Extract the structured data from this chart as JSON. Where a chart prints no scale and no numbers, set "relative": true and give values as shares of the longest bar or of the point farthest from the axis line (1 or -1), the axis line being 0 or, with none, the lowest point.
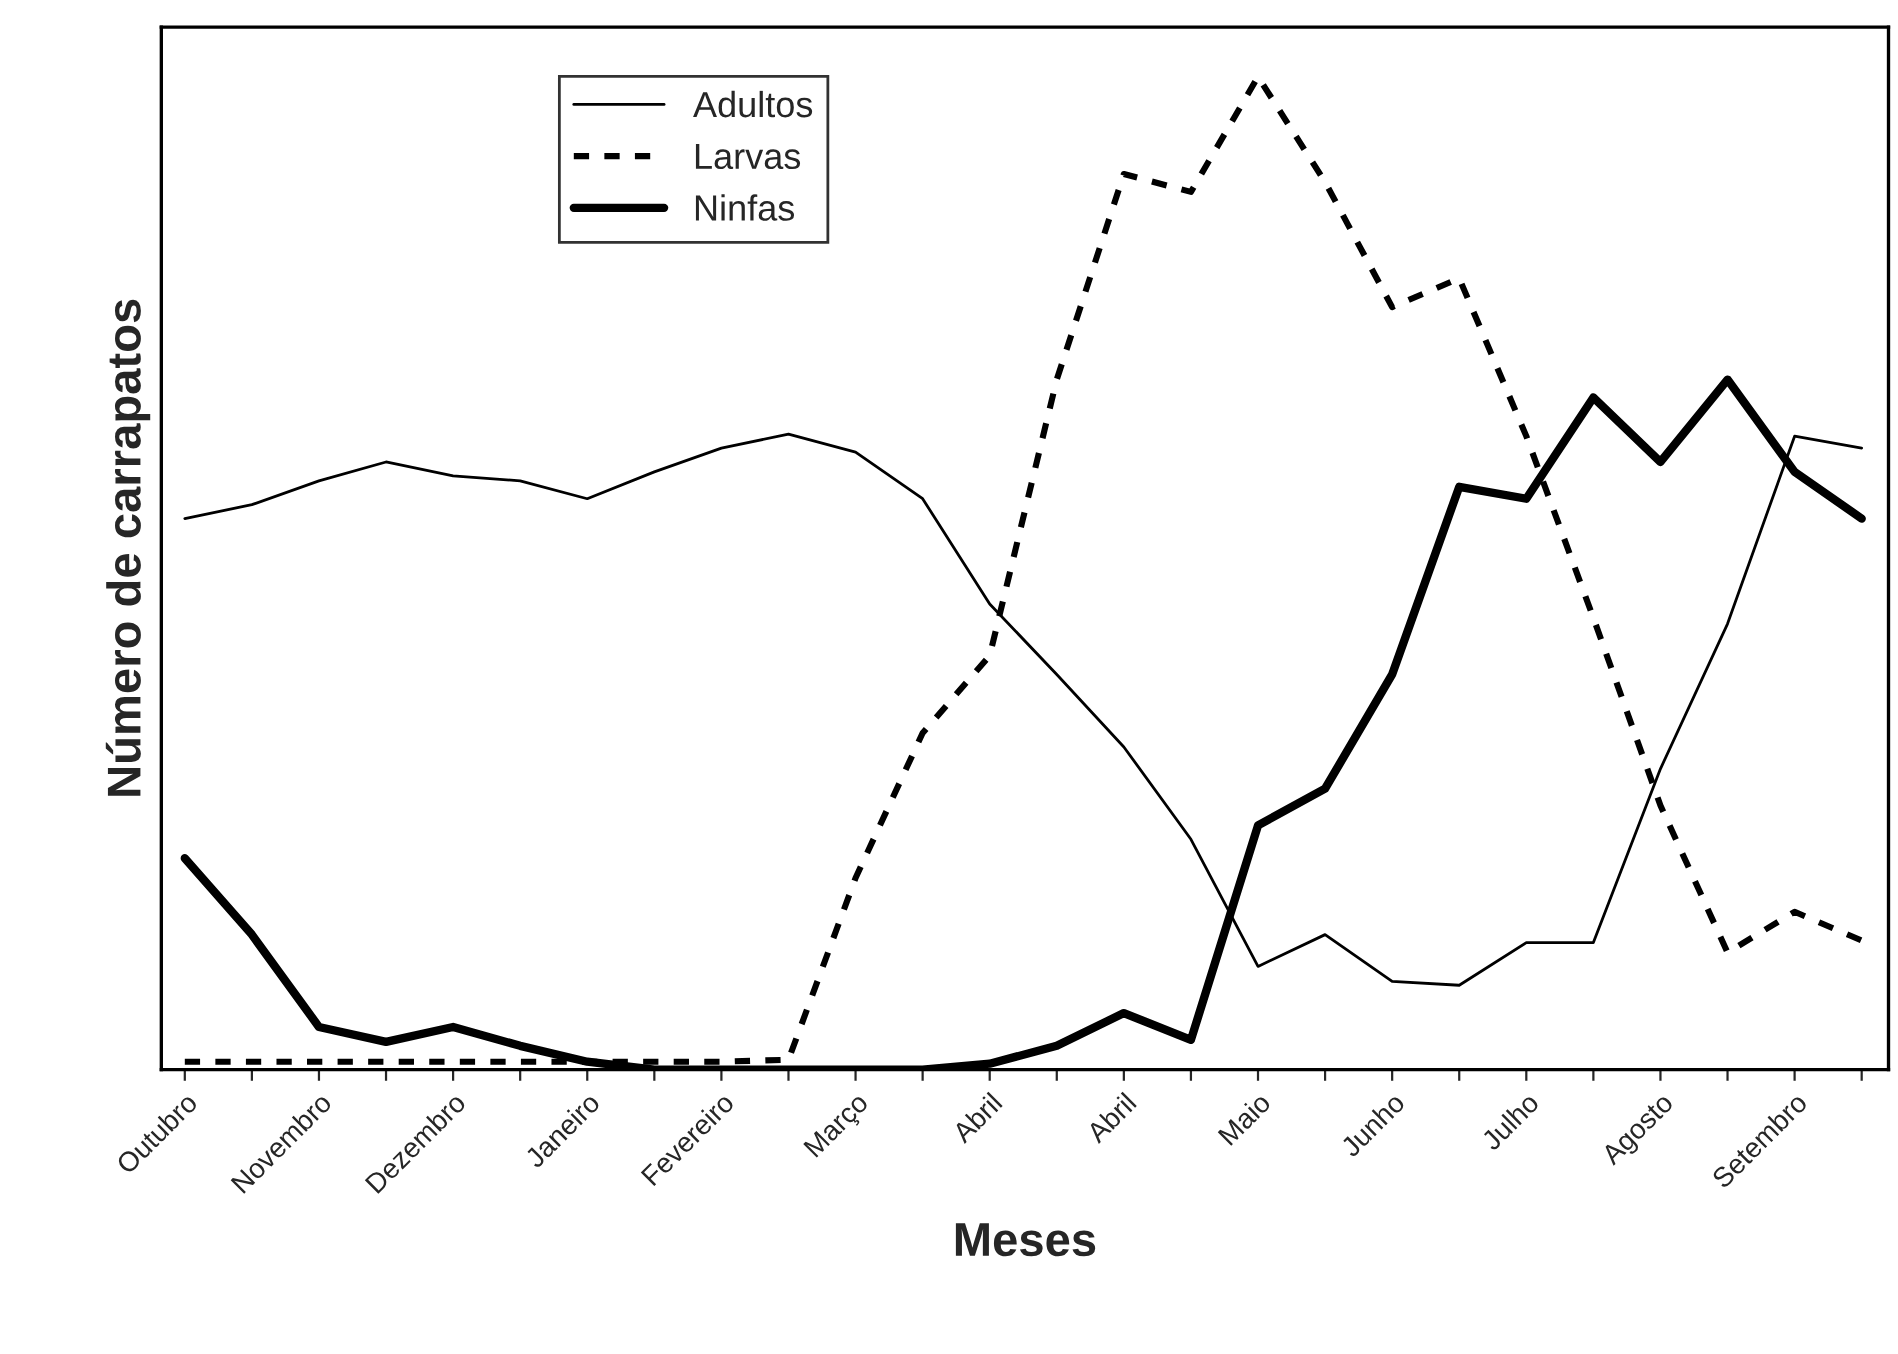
{
  "chart_data": {
    "type": "line",
    "xlabel": "Meses",
    "ylabel": "Número de carrapatos",
    "relative": true,
    "tick_labels": "x",
    "grid": false,
    "legend": "top left",
    "marker": "none",
    "categories": [
      "Outubro",
      null,
      "Novembro",
      null,
      "Dezembro",
      null,
      "Janeiro",
      null,
      "Fevereiro",
      null,
      "Março",
      null,
      "Abril",
      null,
      "Abril",
      null,
      "Maio",
      null,
      "Junho",
      null,
      "Julho",
      null,
      "Agosto",
      null,
      "Setembro",
      null
    ],
    "series": [
      {
        "name": "Adultos",
        "color": "#000000",
        "line_style": "solid",
        "values": [
          0.555,
          0.569,
          0.593,
          0.612,
          0.598,
          0.593,
          0.575,
          0.602,
          0.626,
          0.64,
          0.622,
          0.575,
          0.469,
          0.398,
          0.325,
          0.232,
          0.104,
          0.136,
          0.089,
          0.085,
          0.128,
          0.128,
          0.303,
          0.449,
          0.638,
          0.626
        ]
      },
      {
        "name": "Larvas",
        "color": "#000000",
        "line_style": "dashed",
        "values": [
          0.008,
          0.008,
          0.008,
          0.008,
          0.008,
          0.008,
          0.008,
          0.008,
          0.008,
          0.01,
          0.193,
          0.339,
          0.417,
          0.695,
          0.902,
          0.884,
          1,
          0.894,
          0.768,
          0.797,
          0.638,
          0.455,
          0.266,
          0.118,
          0.159,
          0.13
        ]
      },
      {
        "name": "Ninfas",
        "color": "#000000",
        "line_style": "solid",
        "values": [
          0.213,
          0.136,
          0.043,
          0.028,
          0.043,
          0.024,
          0.008,
          0,
          0,
          0,
          0,
          0,
          0.006,
          0.024,
          0.057,
          0.03,
          0.246,
          0.283,
          0.398,
          0.587,
          0.575,
          0.677,
          0.612,
          0.695,
          0.602,
          0.555
        ]
      }
    ]
  }
}
